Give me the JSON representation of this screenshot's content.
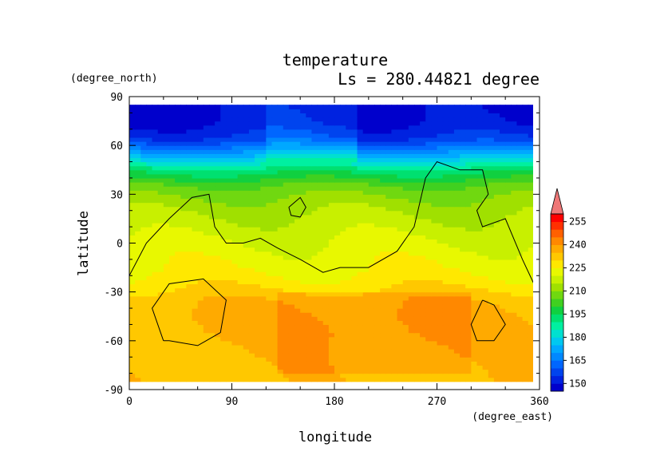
{
  "chart_data": {
    "type": "heatmap",
    "title": "temperature",
    "subtitle": "Ls = 280.44821 degree",
    "xlabel": "longitude",
    "ylabel": "latitude",
    "xunit": "(degree_east)",
    "yunit": "(degree_north)",
    "xlim": [
      0,
      360
    ],
    "ylim": [
      -90,
      90
    ],
    "data_lat_range": [
      -85,
      85
    ],
    "xticks": [
      0,
      90,
      180,
      270,
      360
    ],
    "yticks": [
      -90,
      -60,
      -30,
      0,
      30,
      60,
      90
    ],
    "colorbar": {
      "levels": [
        145,
        150,
        155,
        160,
        165,
        170,
        175,
        180,
        185,
        190,
        195,
        200,
        205,
        210,
        215,
        220,
        225,
        230,
        235,
        240,
        245,
        250,
        255,
        260
      ],
      "colors": [
        "#0000cc",
        "#0022e0",
        "#0044ee",
        "#0066ff",
        "#0088ff",
        "#00a8ff",
        "#00c8f0",
        "#00e0d0",
        "#00f0a0",
        "#00e070",
        "#10d040",
        "#40d020",
        "#70d810",
        "#a0e000",
        "#c8f000",
        "#e8f800",
        "#ffe800",
        "#ffc800",
        "#ffaa00",
        "#ff8800",
        "#ff6000",
        "#ff3000",
        "#ff0000",
        "#ee7777"
      ],
      "labels": [
        150,
        165,
        180,
        195,
        210,
        225,
        240,
        255
      ]
    },
    "temperature_by_latitude": {
      "lat": [
        -85,
        -75,
        -65,
        -55,
        -45,
        -35,
        -25,
        -15,
        -5,
        5,
        15,
        25,
        35,
        45,
        55,
        65,
        75,
        85
      ],
      "temp": [
        233,
        233,
        234,
        236,
        236,
        234,
        228,
        224,
        222,
        219,
        216,
        212,
        206,
        192,
        172,
        155,
        149,
        148
      ]
    },
    "contours": [
      {
        "name": "northern-boundary",
        "lonlat": [
          [
            0,
            -20
          ],
          [
            15,
            0
          ],
          [
            35,
            15
          ],
          [
            55,
            28
          ],
          [
            70,
            30
          ],
          [
            75,
            10
          ],
          [
            85,
            0
          ],
          [
            100,
            0
          ],
          [
            115,
            3
          ],
          [
            130,
            -3
          ],
          [
            150,
            -10
          ],
          [
            170,
            -18
          ],
          [
            185,
            -15
          ],
          [
            210,
            -15
          ],
          [
            235,
            -5
          ],
          [
            250,
            10
          ],
          [
            255,
            25
          ],
          [
            260,
            40
          ],
          [
            270,
            50
          ],
          [
            290,
            45
          ],
          [
            310,
            45
          ],
          [
            315,
            30
          ],
          [
            305,
            20
          ],
          [
            310,
            10
          ],
          [
            330,
            15
          ],
          [
            345,
            -10
          ],
          [
            355,
            -25
          ],
          [
            360,
            -20
          ]
        ]
      },
      {
        "name": "small-north",
        "lonlat": [
          [
            140,
            22
          ],
          [
            150,
            28
          ],
          [
            155,
            22
          ],
          [
            150,
            16
          ],
          [
            142,
            17
          ],
          [
            140,
            22
          ]
        ]
      },
      {
        "name": "south-west",
        "lonlat": [
          [
            30,
            -60
          ],
          [
            20,
            -40
          ],
          [
            35,
            -25
          ],
          [
            65,
            -22
          ],
          [
            85,
            -35
          ],
          [
            80,
            -55
          ],
          [
            60,
            -63
          ],
          [
            35,
            -60
          ],
          [
            30,
            -60
          ]
        ]
      },
      {
        "name": "south-east",
        "lonlat": [
          [
            310,
            -35
          ],
          [
            320,
            -38
          ],
          [
            330,
            -50
          ],
          [
            320,
            -60
          ],
          [
            305,
            -60
          ],
          [
            300,
            -50
          ],
          [
            310,
            -35
          ]
        ]
      }
    ]
  }
}
